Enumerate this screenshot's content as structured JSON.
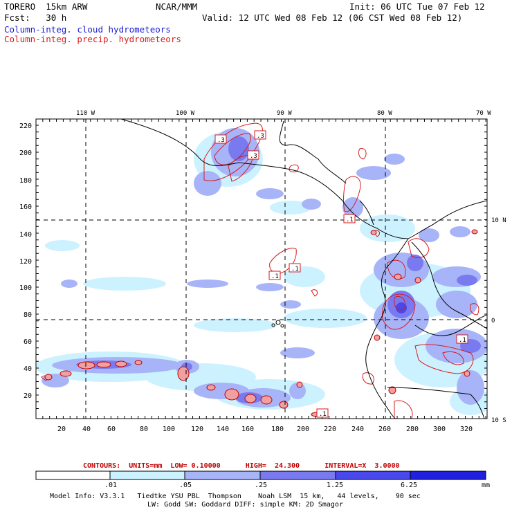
{
  "header": {
    "model": "TORERO  15km ARW",
    "org": "NCAR/MMM",
    "init": "Init: 06 UTC Tue 07 Feb 12",
    "fcst": "Fcst:   30 h",
    "valid": "Valid: 12 UTC Wed 08 Feb 12 (06 CST Wed 08 Feb 12)",
    "field1": "Column-integ. cloud hydrometeors",
    "field2": "Column-integ. precip. hydrometeors"
  },
  "map": {
    "lon_labels": [
      "110 W",
      "100 W",
      "90 W",
      "80 W",
      "70 W"
    ],
    "lat_labels": [
      "10 N",
      "0",
      "10 S"
    ],
    "y_ticks": [
      "220",
      "200",
      "180",
      "160",
      "140",
      "120",
      "100",
      "80",
      "60",
      "40",
      "20"
    ],
    "x_ticks": [
      "20",
      "40",
      "60",
      "80",
      "100",
      "120",
      "140",
      "160",
      "180",
      "200",
      "220",
      "240",
      "260",
      "280",
      "300",
      "320"
    ],
    "contour_labels": [
      ".3",
      ".3",
      ".3",
      ".1",
      ".1",
      ".1",
      ".1",
      ".1"
    ]
  },
  "contour_info": "CONTOURS:  UNITS=mm  LOW= 0.10000      HIGH=  24.300      INTERVAL=X  3.0000",
  "colorbar": {
    "labels": [
      ".01",
      ".05",
      ".25",
      "1.25",
      "6.25"
    ],
    "units": "mm",
    "colors": [
      "#ffffff",
      "#ccf2ff",
      "#a8b4f8",
      "#7a7af0",
      "#4848ec",
      "#2020e0"
    ]
  },
  "footer": {
    "line1": "Model Info: V3.3.1   Tiedtke YSU PBL  Thompson    Noah LSM  15 km,   44 levels,    90 sec",
    "line2": "LW: Godd SW: Goddard DIFF: simple KM: 2D Smagor"
  }
}
